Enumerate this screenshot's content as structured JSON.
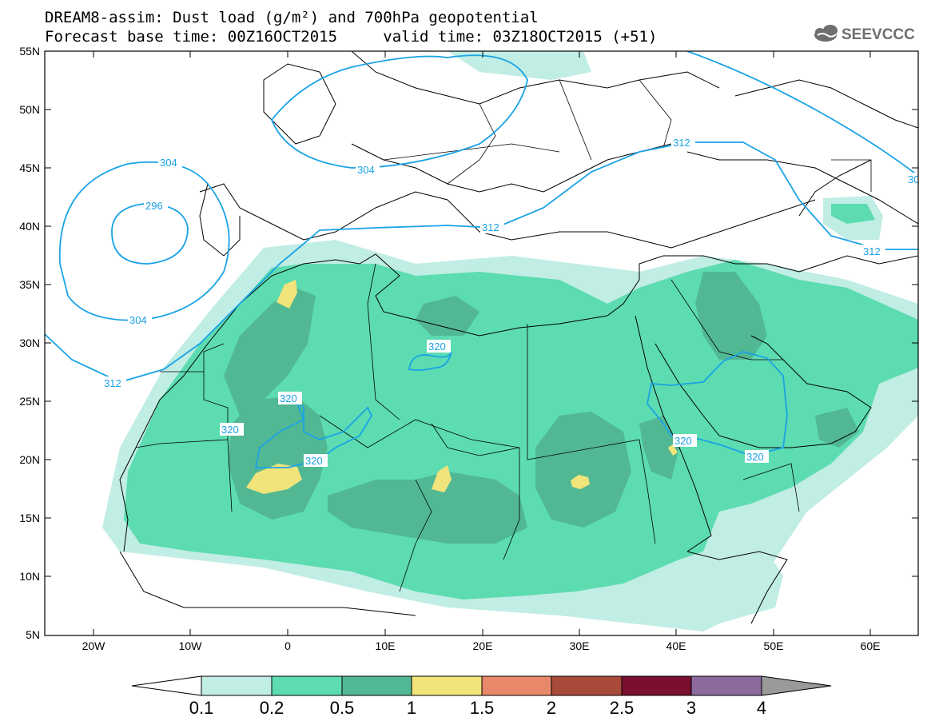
{
  "header": {
    "title_line1": "DREAM8-assim: Dust load (g/m²) and 700hPa geopotential",
    "base_label": "Forecast base time: 00Z16OCT2015",
    "valid_label": "valid time: 03Z18OCT2015 (+51)",
    "logo_text": "SEEVCCC"
  },
  "map": {
    "lat_labels": [
      "55N",
      "50N",
      "45N",
      "40N",
      "35N",
      "30N",
      "25N",
      "20N",
      "15N",
      "10N",
      "5N"
    ],
    "lon_labels": [
      "20W",
      "10W",
      "0",
      "10E",
      "20E",
      "30E",
      "40E",
      "50E",
      "60E"
    ],
    "contour_labels": {
      "c304_a": "304",
      "c304_b": "304",
      "c304_c": "304",
      "c296": "296",
      "c312_a": "312",
      "c312_b": "312",
      "c312_c": "312",
      "c312_d": "312",
      "c320_a": "320",
      "c320_b": "320",
      "c320_c": "320",
      "c320_d": "320",
      "c320_e": "320",
      "c320_f": "320",
      "c30_edge": "30"
    },
    "colors": {
      "band_01": "#c0ede4",
      "band_02": "#5cdcb0",
      "band_05": "#52b894",
      "band_1": "#f0e47a",
      "band_15": "#e8886a",
      "band_2": "#a84a3a",
      "band_25": "#7a1030",
      "band_3": "#8c6a9e",
      "band_4": "#9a9a9a",
      "contour": "#1aa3e6"
    }
  },
  "colorbar": {
    "labels": [
      "0.1",
      "0.2",
      "0.5",
      "1",
      "1.5",
      "2",
      "2.5",
      "3",
      "4"
    ]
  }
}
